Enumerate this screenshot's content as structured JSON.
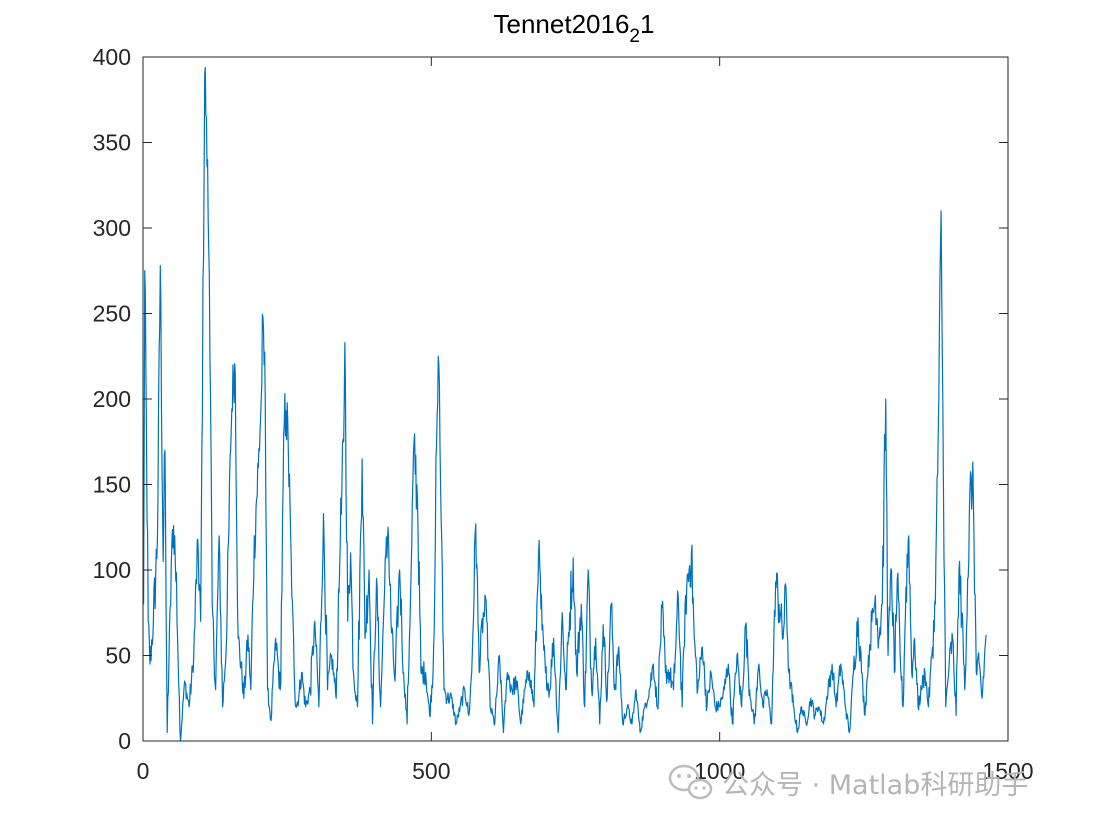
{
  "chart_data": {
    "type": "line",
    "title": "Tennet2016",
    "title_subscript": "2",
    "title_suffix": "1",
    "xlabel": "",
    "ylabel": "",
    "xlim": [
      0,
      1500
    ],
    "ylim": [
      0,
      400
    ],
    "xticks": [
      0,
      500,
      1000,
      1500
    ],
    "yticks": [
      0,
      50,
      100,
      150,
      200,
      250,
      300,
      350,
      400
    ],
    "grid": false,
    "box": true,
    "line_color": "#0072bd",
    "n_points": 1463,
    "series": [
      {
        "peaks": [
          [
            1,
            80
          ],
          [
            3,
            275
          ],
          [
            6,
            180
          ],
          [
            9,
            70
          ],
          [
            12,
            45
          ],
          [
            18,
            70
          ],
          [
            25,
            118
          ],
          [
            30,
            278
          ],
          [
            35,
            105
          ],
          [
            38,
            170
          ],
          [
            42,
            5
          ],
          [
            50,
            115
          ],
          [
            55,
            120
          ],
          [
            60,
            60
          ],
          [
            65,
            0
          ],
          [
            72,
            35
          ],
          [
            80,
            20
          ],
          [
            88,
            50
          ],
          [
            95,
            118
          ],
          [
            100,
            70
          ],
          [
            107,
            390
          ],
          [
            110,
            365
          ],
          [
            115,
            272
          ],
          [
            120,
            80
          ],
          [
            126,
            30
          ],
          [
            132,
            120
          ],
          [
            138,
            20
          ],
          [
            145,
            60
          ],
          [
            152,
            170
          ],
          [
            156,
            220
          ],
          [
            160,
            215
          ],
          [
            165,
            60
          ],
          [
            170,
            45
          ],
          [
            175,
            25
          ],
          [
            182,
            62
          ],
          [
            187,
            30
          ],
          [
            193,
            120
          ],
          [
            200,
            160
          ],
          [
            205,
            200
          ],
          [
            208,
            248
          ],
          [
            212,
            200
          ],
          [
            216,
            30
          ],
          [
            222,
            12
          ],
          [
            230,
            60
          ],
          [
            238,
            30
          ],
          [
            245,
            185
          ],
          [
            248,
            193
          ],
          [
            252,
            170
          ],
          [
            258,
            85
          ],
          [
            265,
            20
          ],
          [
            270,
            25
          ],
          [
            275,
            40
          ],
          [
            282,
            20
          ],
          [
            290,
            30
          ],
          [
            298,
            70
          ],
          [
            305,
            20
          ],
          [
            313,
            133
          ],
          [
            320,
            30
          ],
          [
            327,
            50
          ],
          [
            335,
            25
          ],
          [
            342,
            115
          ],
          [
            348,
            175
          ],
          [
            350,
            233
          ],
          [
            355,
            70
          ],
          [
            360,
            110
          ],
          [
            365,
            40
          ],
          [
            372,
            20
          ],
          [
            380,
            165
          ],
          [
            385,
            60
          ],
          [
            392,
            100
          ],
          [
            398,
            10
          ],
          [
            405,
            95
          ],
          [
            412,
            20
          ],
          [
            418,
            80
          ],
          [
            425,
            125
          ],
          [
            430,
            70
          ],
          [
            437,
            35
          ],
          [
            445,
            100
          ],
          [
            452,
            40
          ],
          [
            458,
            10
          ],
          [
            465,
            100
          ],
          [
            470,
            175
          ],
          [
            476,
            140
          ],
          [
            482,
            40
          ],
          [
            490,
            40
          ],
          [
            497,
            15
          ],
          [
            503,
            40
          ],
          [
            510,
            190
          ],
          [
            513,
            220
          ],
          [
            517,
            130
          ],
          [
            522,
            30
          ],
          [
            528,
            25
          ],
          [
            535,
            25
          ],
          [
            543,
            10
          ],
          [
            550,
            20
          ],
          [
            558,
            30
          ],
          [
            565,
            15
          ],
          [
            570,
            40
          ],
          [
            577,
            127
          ],
          [
            583,
            40
          ],
          [
            590,
            75
          ],
          [
            596,
            70
          ],
          [
            602,
            20
          ],
          [
            610,
            10
          ],
          [
            618,
            50
          ],
          [
            625,
            5
          ],
          [
            632,
            40
          ],
          [
            640,
            30
          ],
          [
            648,
            35
          ],
          [
            655,
            10
          ],
          [
            662,
            30
          ],
          [
            670,
            40
          ],
          [
            678,
            20
          ],
          [
            686,
            110
          ],
          [
            692,
            65
          ],
          [
            698,
            40
          ],
          [
            705,
            30
          ],
          [
            712,
            60
          ],
          [
            720,
            5
          ],
          [
            727,
            75
          ],
          [
            733,
            30
          ],
          [
            740,
            75
          ],
          [
            746,
            107
          ],
          [
            752,
            40
          ],
          [
            760,
            80
          ],
          [
            766,
            20
          ],
          [
            772,
            100
          ],
          [
            778,
            30
          ],
          [
            785,
            60
          ],
          [
            792,
            10
          ],
          [
            798,
            68
          ],
          [
            805,
            25
          ],
          [
            812,
            80
          ],
          [
            818,
            30
          ],
          [
            825,
            55
          ],
          [
            832,
            10
          ],
          [
            840,
            20
          ],
          [
            848,
            10
          ],
          [
            855,
            30
          ],
          [
            862,
            5
          ],
          [
            870,
            20
          ],
          [
            878,
            30
          ],
          [
            885,
            45
          ],
          [
            892,
            20
          ],
          [
            900,
            78
          ],
          [
            906,
            40
          ],
          [
            913,
            40
          ],
          [
            920,
            30
          ],
          [
            928,
            85
          ],
          [
            935,
            20
          ],
          [
            941,
            85
          ],
          [
            947,
            100
          ],
          [
            951,
            110
          ],
          [
            956,
            60
          ],
          [
            962,
            30
          ],
          [
            970,
            55
          ],
          [
            978,
            20
          ],
          [
            985,
            40
          ],
          [
            992,
            20
          ],
          [
            1000,
            20
          ],
          [
            1008,
            30
          ],
          [
            1015,
            45
          ],
          [
            1022,
            10
          ],
          [
            1030,
            50
          ],
          [
            1038,
            20
          ],
          [
            1045,
            68
          ],
          [
            1052,
            30
          ],
          [
            1060,
            10
          ],
          [
            1068,
            45
          ],
          [
            1075,
            20
          ],
          [
            1082,
            30
          ],
          [
            1090,
            10
          ],
          [
            1097,
            93
          ],
          [
            1103,
            80
          ],
          [
            1110,
            60
          ],
          [
            1115,
            90
          ],
          [
            1120,
            40
          ],
          [
            1128,
            20
          ],
          [
            1135,
            5
          ],
          [
            1142,
            20
          ],
          [
            1150,
            10
          ],
          [
            1158,
            25
          ],
          [
            1165,
            15
          ],
          [
            1172,
            20
          ],
          [
            1180,
            10
          ],
          [
            1188,
            30
          ],
          [
            1195,
            45
          ],
          [
            1202,
            20
          ],
          [
            1210,
            45
          ],
          [
            1218,
            20
          ],
          [
            1225,
            5
          ],
          [
            1232,
            40
          ],
          [
            1240,
            72
          ],
          [
            1246,
            40
          ],
          [
            1252,
            15
          ],
          [
            1258,
            50
          ],
          [
            1264,
            70
          ],
          [
            1270,
            85
          ],
          [
            1276,
            60
          ],
          [
            1282,
            80
          ],
          [
            1288,
            200
          ],
          [
            1292,
            50
          ],
          [
            1298,
            100
          ],
          [
            1303,
            40
          ],
          [
            1308,
            95
          ],
          [
            1313,
            50
          ],
          [
            1318,
            20
          ],
          [
            1323,
            90
          ],
          [
            1328,
            120
          ],
          [
            1333,
            40
          ],
          [
            1338,
            60
          ],
          [
            1344,
            20
          ],
          [
            1350,
            30
          ],
          [
            1356,
            40
          ],
          [
            1362,
            20
          ],
          [
            1368,
            50
          ],
          [
            1374,
            80
          ],
          [
            1380,
            200
          ],
          [
            1384,
            310
          ],
          [
            1388,
            150
          ],
          [
            1392,
            20
          ],
          [
            1398,
            45
          ],
          [
            1404,
            60
          ],
          [
            1410,
            15
          ],
          [
            1415,
            100
          ],
          [
            1420,
            75
          ],
          [
            1425,
            30
          ],
          [
            1430,
            95
          ],
          [
            1436,
            155
          ],
          [
            1440,
            140
          ],
          [
            1445,
            40
          ],
          [
            1450,
            45
          ],
          [
            1455,
            25
          ],
          [
            1462,
            62
          ]
        ]
      }
    ]
  },
  "watermark": {
    "icon": "wechat-icon",
    "text": "公众号 · Matlab科研助手"
  }
}
